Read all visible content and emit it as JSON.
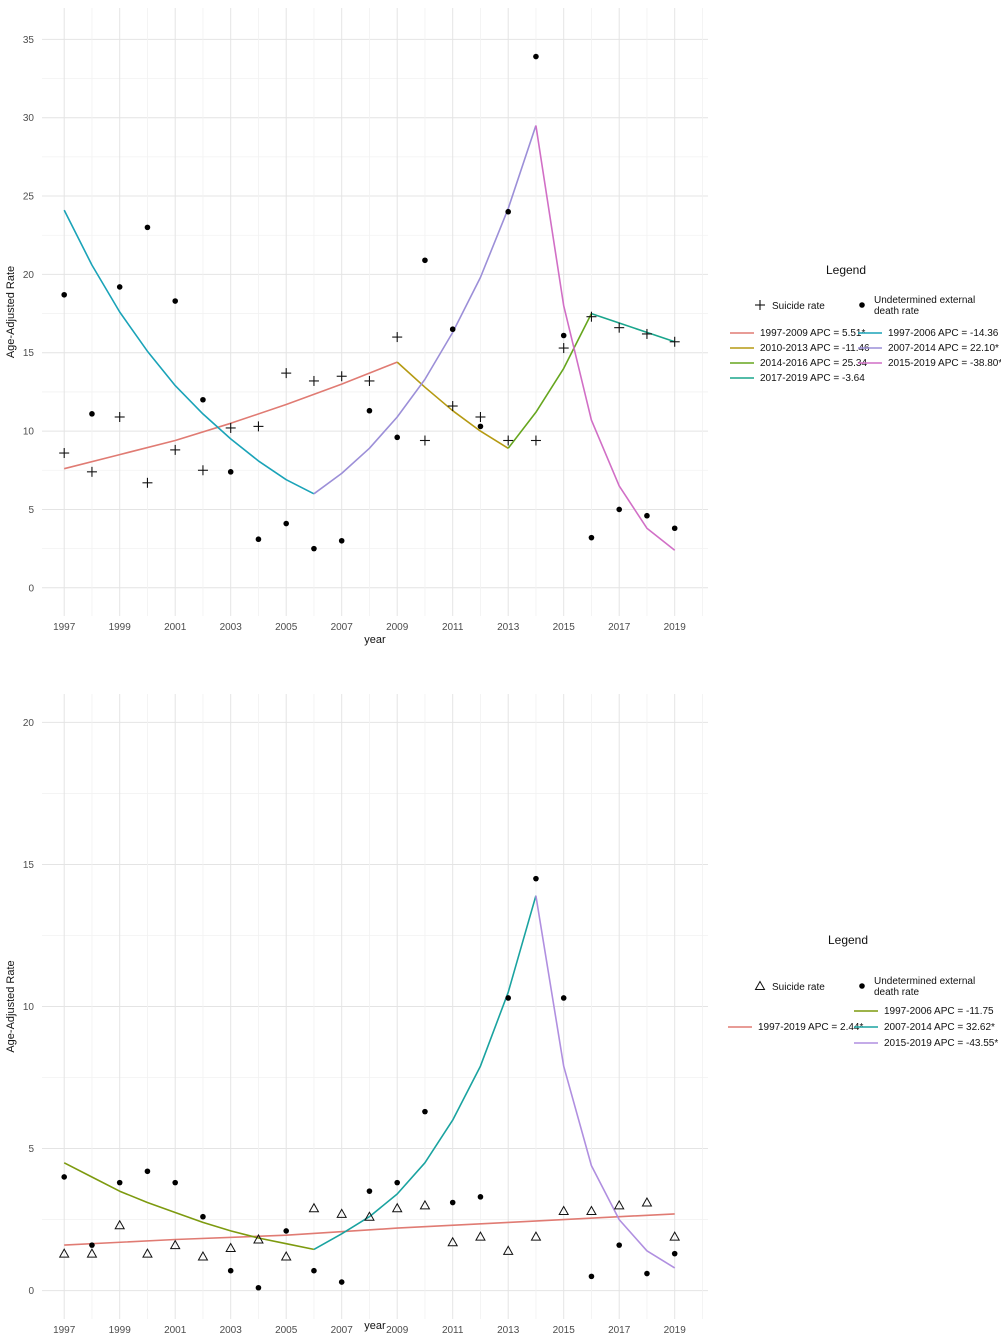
{
  "chart_data": [
    {
      "type": "line",
      "xlabel": "year",
      "ylabel": "Age-Adjusted Rate",
      "xlim": [
        1996.2,
        2020.2
      ],
      "ylim": [
        -1.8,
        37.0
      ],
      "x_ticks": [
        1997,
        1999,
        2001,
        2003,
        2005,
        2007,
        2009,
        2011,
        2013,
        2015,
        2017,
        2019
      ],
      "y_ticks": [
        0,
        5,
        10,
        15,
        20,
        25,
        30,
        35
      ],
      "grid": true,
      "legend": {
        "title": "Legend",
        "placement": "right",
        "point_entries": [
          {
            "label": "Suicide rate",
            "marker": "plus"
          },
          {
            "label": "Undetermined external death rate",
            "marker": "dot"
          }
        ],
        "line_entries": [
          {
            "label": "1997-2009 APC = 5.51*",
            "color": "#e07b73"
          },
          {
            "label": "2010-2013 APC = -11.46",
            "color": "#b59a12"
          },
          {
            "label": "2014-2016 APC = 25.34",
            "color": "#66a61e"
          },
          {
            "label": "2017-2019 APC = -3.64",
            "color": "#1aa58c"
          },
          {
            "label": "1997-2006 APC = -14.36",
            "color": "#1aa3b8"
          },
          {
            "label": "2007-2014 APC = 22.10*",
            "color": "#9c8fd8"
          },
          {
            "label": "2015-2019 APC = -38.80*",
            "color": "#d16fc6"
          }
        ]
      },
      "points": [
        {
          "name": "Suicide rate",
          "marker": "plus",
          "x": [
            1997,
            1998,
            1999,
            2000,
            2001,
            2002,
            2003,
            2004,
            2005,
            2006,
            2007,
            2008,
            2009,
            2010,
            2011,
            2012,
            2013,
            2014,
            2015,
            2016,
            2017,
            2018,
            2019
          ],
          "y": [
            8.6,
            7.4,
            10.9,
            6.7,
            8.8,
            7.5,
            10.2,
            10.3,
            13.7,
            13.2,
            13.5,
            13.2,
            16.0,
            9.4,
            11.6,
            10.9,
            9.4,
            9.4,
            15.3,
            17.3,
            16.6,
            16.2,
            15.7
          ]
        },
        {
          "name": "Undetermined external death rate",
          "marker": "dot",
          "x": [
            1997,
            1998,
            1999,
            2000,
            2001,
            2002,
            2003,
            2004,
            2005,
            2006,
            2007,
            2008,
            2009,
            2010,
            2011,
            2012,
            2013,
            2014,
            2015,
            2016,
            2017,
            2018,
            2019
          ],
          "y": [
            18.7,
            11.1,
            19.2,
            23.0,
            18.3,
            12.0,
            7.4,
            3.1,
            4.1,
            2.5,
            3.0,
            11.3,
            9.6,
            20.9,
            16.5,
            10.3,
            24.0,
            33.9,
            16.1,
            3.2,
            5.0,
            4.6,
            3.8
          ]
        }
      ],
      "series": [
        {
          "name": "1997-2009 APC = 5.51*",
          "color": "#e07b73",
          "x": [
            1997,
            1999,
            2001,
            2003,
            2005,
            2007,
            2009
          ],
          "y": [
            7.6,
            8.5,
            9.4,
            10.5,
            11.7,
            13.0,
            14.4
          ]
        },
        {
          "name": "2010-2013 APC = -11.46",
          "color": "#b59a12",
          "x": [
            2009,
            2010,
            2011,
            2012,
            2013
          ],
          "y": [
            14.4,
            12.8,
            11.3,
            10.0,
            8.9
          ]
        },
        {
          "name": "2014-2016 APC = 25.34",
          "color": "#66a61e",
          "x": [
            2013,
            2014,
            2015,
            2016
          ],
          "y": [
            8.9,
            11.2,
            14.0,
            17.5
          ]
        },
        {
          "name": "2017-2019 APC = -3.64",
          "color": "#1aa58c",
          "x": [
            2016,
            2017,
            2018,
            2019
          ],
          "y": [
            17.5,
            16.9,
            16.3,
            15.7
          ]
        },
        {
          "name": "1997-2006 APC = -14.36",
          "color": "#1aa3b8",
          "x": [
            1997,
            1998,
            1999,
            2000,
            2001,
            2002,
            2003,
            2004,
            2005,
            2006
          ],
          "y": [
            24.1,
            20.6,
            17.6,
            15.1,
            12.9,
            11.1,
            9.5,
            8.1,
            6.9,
            6.0
          ]
        },
        {
          "name": "2007-2014 APC = 22.10*",
          "color": "#9c8fd8",
          "x": [
            2006,
            2007,
            2008,
            2009,
            2010,
            2011,
            2012,
            2013,
            2014
          ],
          "y": [
            6.0,
            7.3,
            8.9,
            10.9,
            13.3,
            16.3,
            19.8,
            24.2,
            29.5
          ]
        },
        {
          "name": "2015-2019 APC = -38.80*",
          "color": "#d16fc6",
          "x": [
            2014,
            2015,
            2016,
            2017,
            2018,
            2019
          ],
          "y": [
            29.5,
            18.0,
            10.7,
            6.5,
            3.8,
            2.4
          ]
        }
      ]
    },
    {
      "type": "line",
      "xlabel": "year",
      "ylabel": "Age-Adjusted Rate",
      "xlim": [
        1996.2,
        2020.2
      ],
      "ylim": [
        -1.0,
        21.0
      ],
      "x_ticks": [
        1997,
        1999,
        2001,
        2003,
        2005,
        2007,
        2009,
        2011,
        2013,
        2015,
        2017,
        2019
      ],
      "y_ticks": [
        0,
        5,
        10,
        15,
        20
      ],
      "grid": true,
      "legend": {
        "title": "Legend",
        "placement": "right",
        "point_entries": [
          {
            "label": "Suicide rate",
            "marker": "triangle"
          },
          {
            "label": "Undetermined external death rate",
            "marker": "dot"
          }
        ],
        "line_entries": [
          {
            "label": "1997-2019 APC = 2.44*",
            "color": "#e07b73"
          },
          {
            "label": "1997-2006 APC = -11.75",
            "color": "#7d9a0f"
          },
          {
            "label": "2007-2014 APC = 32.62*",
            "color": "#1aa3a0"
          },
          {
            "label": "2015-2019 APC = -43.55*",
            "color": "#b08fe0"
          }
        ]
      },
      "points": [
        {
          "name": "Suicide rate",
          "marker": "triangle",
          "x": [
            1997,
            1998,
            1999,
            2000,
            2001,
            2002,
            2003,
            2004,
            2005,
            2006,
            2007,
            2008,
            2009,
            2010,
            2011,
            2012,
            2013,
            2014,
            2015,
            2016,
            2017,
            2018,
            2019
          ],
          "y": [
            1.3,
            1.3,
            2.3,
            1.3,
            1.6,
            1.2,
            1.5,
            1.8,
            1.2,
            2.9,
            2.7,
            2.6,
            2.9,
            3.0,
            1.7,
            1.9,
            1.4,
            1.9,
            2.8,
            2.8,
            3.0,
            3.1,
            1.9
          ]
        },
        {
          "name": "Undetermined external death rate",
          "marker": "dot",
          "x": [
            1997,
            1998,
            1999,
            2000,
            2001,
            2002,
            2003,
            2004,
            2005,
            2006,
            2007,
            2008,
            2009,
            2010,
            2011,
            2012,
            2013,
            2014,
            2015,
            2016,
            2017,
            2018,
            2019
          ],
          "y": [
            4.0,
            1.6,
            3.8,
            4.2,
            3.8,
            2.6,
            0.7,
            0.1,
            2.1,
            0.7,
            0.3,
            3.5,
            3.8,
            6.3,
            3.1,
            3.3,
            10.3,
            14.5,
            10.3,
            0.5,
            1.6,
            0.6,
            1.3
          ]
        }
      ],
      "series": [
        {
          "name": "1997-2019 APC = 2.44*",
          "color": "#e07b73",
          "x": [
            1997,
            2001,
            2005,
            2009,
            2013,
            2017,
            2019
          ],
          "y": [
            1.6,
            1.8,
            1.95,
            2.2,
            2.4,
            2.6,
            2.7
          ]
        },
        {
          "name": "1997-2006 APC = -11.75",
          "color": "#7d9a0f",
          "x": [
            1997,
            1998,
            1999,
            2000,
            2001,
            2002,
            2003,
            2004,
            2005,
            2006
          ],
          "y": [
            4.5,
            4.0,
            3.5,
            3.1,
            2.75,
            2.4,
            2.1,
            1.85,
            1.65,
            1.45
          ]
        },
        {
          "name": "2007-2014 APC = 32.62*",
          "color": "#1aa3a0",
          "x": [
            2006,
            2007,
            2008,
            2009,
            2010,
            2011,
            2012,
            2013,
            2014
          ],
          "y": [
            1.45,
            2.0,
            2.6,
            3.4,
            4.5,
            6.0,
            7.9,
            10.5,
            13.9
          ]
        },
        {
          "name": "2015-2019 APC = -43.55*",
          "color": "#b08fe0",
          "x": [
            2014,
            2015,
            2016,
            2017,
            2018,
            2019
          ],
          "y": [
            13.9,
            7.9,
            4.4,
            2.5,
            1.4,
            0.8
          ]
        }
      ]
    }
  ]
}
